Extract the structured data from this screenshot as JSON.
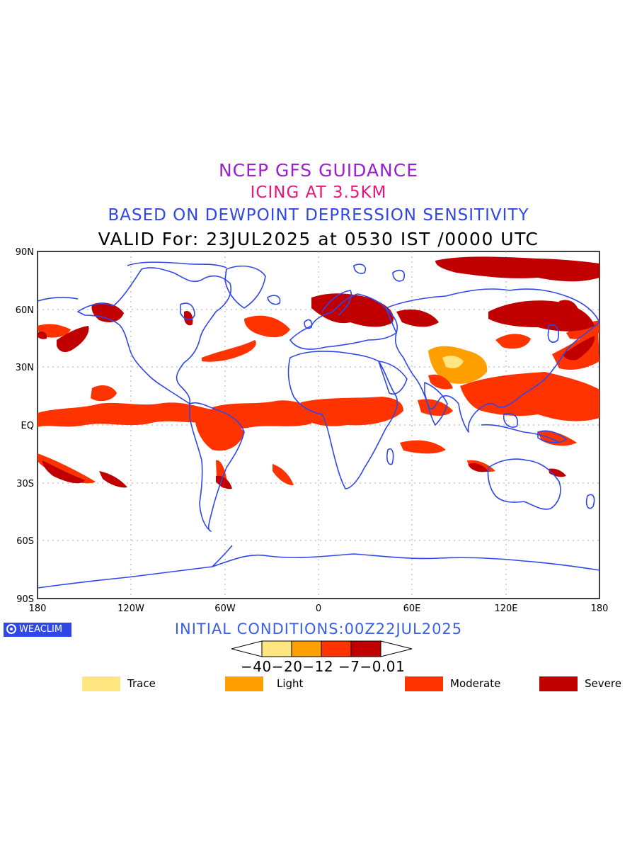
{
  "titles": {
    "line1": "NCEP GFS GUIDANCE",
    "line2": "ICING AT 3.5KM",
    "line3": "BASED ON DEWPOINT DEPRESSION SENSITIVITY",
    "line4": "VALID For: 23JUL2025 at 0530 IST /0000 UTC"
  },
  "axes": {
    "lat_labels": [
      "90N",
      "60N",
      "30N",
      "EQ",
      "30S",
      "60S",
      "90S"
    ],
    "lon_labels": [
      "180",
      "120W",
      "60W",
      "0",
      "60E",
      "120E",
      "180"
    ]
  },
  "brand": "WEACLIM",
  "initial_conditions": "INITIAL CONDITIONS:00Z22JUL2025",
  "colorbar": {
    "ticks": "−40−20−12 −7−0.01",
    "colors": [
      "#ffe680",
      "#ff9f00",
      "#ff3300",
      "#c00000"
    ]
  },
  "legend": [
    {
      "label": "Trace",
      "color": "#ffe680"
    },
    {
      "label": "Light",
      "color": "#ff9f00"
    },
    {
      "label": "Moderate",
      "color": "#ff3300"
    },
    {
      "label": "Severe",
      "color": "#c00000"
    }
  ],
  "colors": {
    "coastline": "#2f47e8",
    "moderate": "#ff3300",
    "severe": "#c00000",
    "light": "#ff9f00",
    "trace": "#ffe680"
  }
}
